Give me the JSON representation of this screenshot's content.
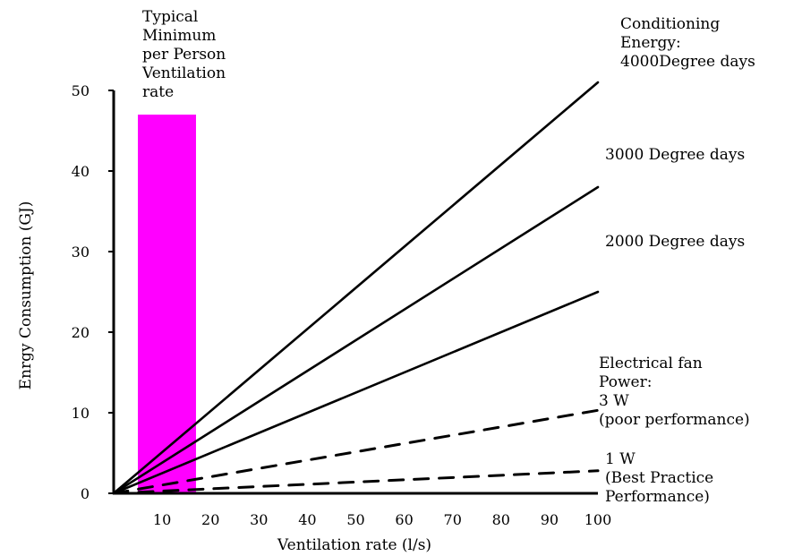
{
  "chart_data": {
    "type": "line",
    "title": "",
    "xlabel": "Ventilation rate (l/s)",
    "ylabel": "Enrgy Consumption (GJ)",
    "xlim": [
      0,
      100
    ],
    "ylim": [
      0,
      50
    ],
    "x_ticks": [
      10,
      20,
      30,
      40,
      50,
      60,
      70,
      80,
      90,
      100
    ],
    "y_ticks": [
      0,
      10,
      20,
      30,
      40,
      50
    ],
    "grid": false,
    "legend": "none",
    "shaded_band": {
      "label_lines": [
        "Typical",
        "Minimum",
        "per Person",
        "Ventilation",
        "rate"
      ],
      "x_range": [
        5,
        17
      ],
      "y_top": 47,
      "color": "#ff00ff"
    },
    "series": [
      {
        "label_lines": [
          "Conditioning",
          "Energy:",
          "4000Degree days"
        ],
        "style": "solid",
        "x": [
          0,
          100
        ],
        "y": [
          0,
          51
        ]
      },
      {
        "label_lines": [
          "3000 Degree days"
        ],
        "style": "solid",
        "x": [
          0,
          100
        ],
        "y": [
          0,
          38
        ]
      },
      {
        "label_lines": [
          "2000 Degree days"
        ],
        "style": "solid",
        "x": [
          0,
          100
        ],
        "y": [
          0,
          25
        ]
      },
      {
        "label_lines": [
          "Electrical fan",
          "Power:",
          "3 W",
          "(poor performance)"
        ],
        "style": "dashed",
        "x": [
          0,
          100
        ],
        "y": [
          0,
          10.3
        ]
      },
      {
        "label_lines": [
          "1 W",
          "(Best Practice",
          "Performance)"
        ],
        "style": "dashed",
        "x": [
          0,
          100
        ],
        "y": [
          0,
          2.8
        ]
      }
    ]
  }
}
